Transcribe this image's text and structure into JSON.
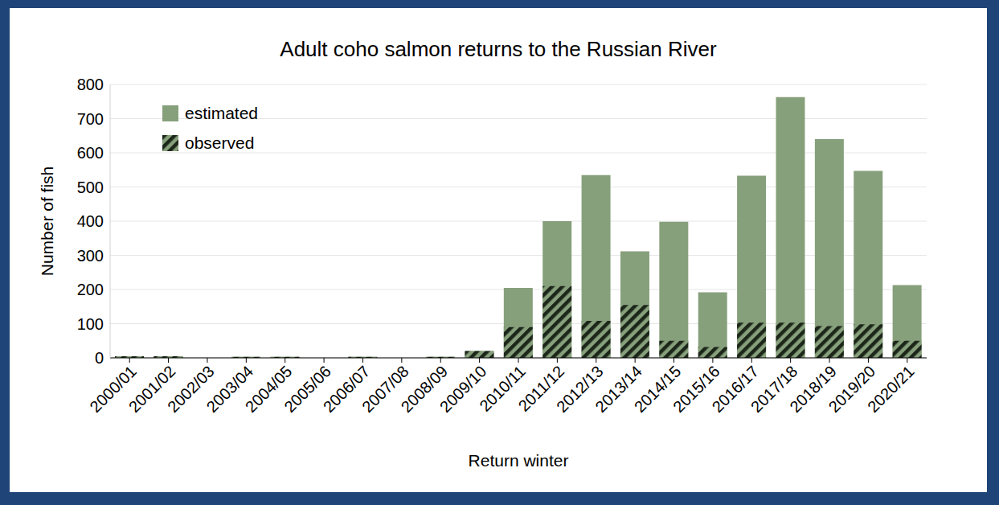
{
  "chart_data": {
    "type": "bar",
    "title": "Adult coho salmon returns to the Russian River",
    "x_label": "Return winter",
    "y_label": "Number of fish",
    "categories": [
      "2000/01",
      "2001/02",
      "2002/03",
      "2003/04",
      "2004/05",
      "2005/06",
      "2006/07",
      "2007/08",
      "2008/09",
      "2009/10",
      "2010/11",
      "2011/12",
      "2012/13",
      "2013/14",
      "2014/15",
      "2015/16",
      "2016/17",
      "2017/18",
      "2018/19",
      "2019/20",
      "2020/21"
    ],
    "series": [
      {
        "name": "estimated",
        "color": "#87a07c",
        "values": [
          5,
          5,
          0,
          3,
          3,
          0,
          3,
          0,
          3,
          20,
          205,
          400,
          535,
          312,
          398,
          192,
          533,
          763,
          640,
          547,
          213
        ]
      },
      {
        "name": "observed",
        "color": "#1c2619",
        "values": [
          5,
          5,
          0,
          3,
          3,
          0,
          3,
          0,
          3,
          20,
          90,
          210,
          108,
          155,
          50,
          32,
          103,
          103,
          93,
          98,
          50
        ]
      }
    ],
    "stacked": false,
    "ylim": [
      0,
      800
    ],
    "yticks": [
      0,
      100,
      200,
      300,
      400,
      500,
      600,
      700,
      800
    ],
    "grid": true,
    "legend": "top-left"
  }
}
